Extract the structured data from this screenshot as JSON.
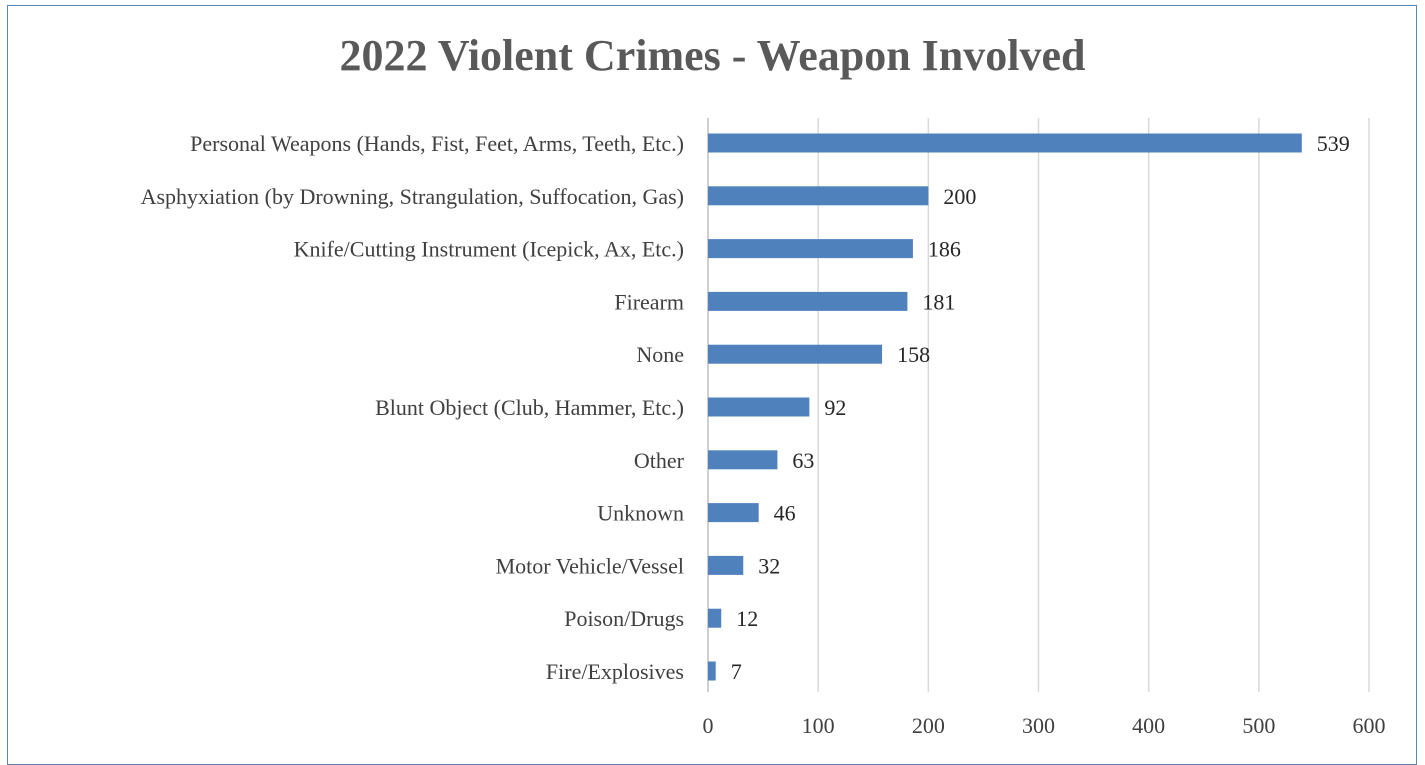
{
  "chart_data": {
    "type": "bar",
    "orientation": "horizontal",
    "title": "2022 Violent Crimes - Weapon Involved",
    "xlabel": "",
    "ylabel": "",
    "categories": [
      "Personal Weapons (Hands, Fist, Feet, Arms, Teeth, Etc.)",
      "Asphyxiation (by Drowning, Strangulation, Suffocation, Gas)",
      "Knife/Cutting Instrument (Icepick, Ax, Etc.)",
      "Firearm",
      "None",
      "Blunt Object (Club, Hammer, Etc.)",
      "Other",
      "Unknown",
      "Motor Vehicle/Vessel",
      "Poison/Drugs",
      "Fire/Explosives"
    ],
    "values": [
      539,
      200,
      186,
      181,
      158,
      92,
      63,
      46,
      32,
      12,
      7
    ],
    "xlim": [
      0,
      600
    ],
    "xticks": [
      0,
      100,
      200,
      300,
      400,
      500,
      600
    ],
    "grid": "vertical",
    "legend": "none",
    "data_labels": true,
    "bar_color": "#4f81bd",
    "grid_color": "#d9d9d9"
  }
}
